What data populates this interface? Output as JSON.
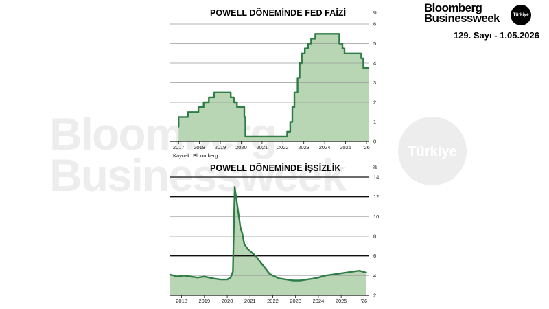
{
  "brand": {
    "name_line1": "Bloomberg",
    "name_line2": "Businessweek",
    "badge": "Türkiye",
    "issue": "129. Sayı - 1.05.2026"
  },
  "watermark": {
    "line1": "Bloomberg",
    "line2": "Businessweek",
    "badge": "Türkiye"
  },
  "colors": {
    "line": "#2e7d46",
    "fill": "#b9d6b4",
    "grid_thin": "#9a9a9a",
    "grid_thick": "#111111"
  },
  "chart_data": [
    {
      "type": "area",
      "title": "POWELL DÖNEMİNDE FED FAİZİ",
      "unit": "%",
      "source": "Kaynak: Bloomberg",
      "xlim": [
        2016.6,
        2026.1
      ],
      "ylim": [
        0,
        6
      ],
      "yticks": [
        0,
        1,
        2,
        3,
        4,
        5,
        6
      ],
      "xticks": [
        "2017",
        "2018",
        "2019",
        "2020",
        "2021",
        "2022",
        "2023",
        "2024",
        "2025",
        "'26"
      ],
      "x": [
        2017.0,
        2017.0,
        2017.2,
        2017.2,
        2017.45,
        2017.45,
        2017.95,
        2017.95,
        2018.2,
        2018.2,
        2018.45,
        2018.45,
        2018.7,
        2018.7,
        2018.95,
        2018.95,
        2019.5,
        2019.5,
        2019.65,
        2019.65,
        2019.8,
        2019.8,
        2020.15,
        2020.15,
        2020.2,
        2020.2,
        2022.2,
        2022.2,
        2022.35,
        2022.35,
        2022.45,
        2022.45,
        2022.55,
        2022.55,
        2022.7,
        2022.7,
        2022.8,
        2022.8,
        2022.9,
        2022.9,
        2023.05,
        2023.05,
        2023.2,
        2023.2,
        2023.35,
        2023.35,
        2023.55,
        2023.55,
        2024.7,
        2024.7,
        2024.85,
        2024.85,
        2024.95,
        2024.95,
        2025.75,
        2025.75,
        2025.85,
        2025.85,
        2026.1
      ],
      "values": [
        0.75,
        1.25,
        1.25,
        1.25,
        1.25,
        1.5,
        1.5,
        1.75,
        1.75,
        2.0,
        2.0,
        2.25,
        2.25,
        2.5,
        2.5,
        2.5,
        2.5,
        2.25,
        2.25,
        2.0,
        2.0,
        1.75,
        1.75,
        1.25,
        1.25,
        0.25,
        0.25,
        0.5,
        0.5,
        1.0,
        1.0,
        1.75,
        1.75,
        2.5,
        2.5,
        3.25,
        3.25,
        4.0,
        4.0,
        4.5,
        4.5,
        4.75,
        4.75,
        5.0,
        5.0,
        5.25,
        5.25,
        5.5,
        5.5,
        5.0,
        5.0,
        4.75,
        4.75,
        4.5,
        4.5,
        4.25,
        4.25,
        3.75,
        3.75
      ],
      "grid": "horizontal"
    },
    {
      "type": "area",
      "title": "POWELL DÖNEMİNDE İŞSİZLİK",
      "unit": "%",
      "xlim": [
        2017.5,
        2026.2
      ],
      "ylim": [
        2,
        14
      ],
      "yticks": [
        2,
        4,
        6,
        8,
        10,
        12,
        14
      ],
      "xticks": [
        "2018",
        "2019",
        "2020",
        "2021",
        "2022",
        "2023",
        "2024",
        "2025",
        "'26"
      ],
      "x": [
        2017.5,
        2017.8,
        2018.1,
        2018.4,
        2018.7,
        2019.0,
        2019.4,
        2019.7,
        2020.0,
        2020.15,
        2020.25,
        2020.33,
        2020.42,
        2020.5,
        2020.58,
        2020.67,
        2020.75,
        2020.9,
        2021.1,
        2021.25,
        2021.45,
        2021.65,
        2021.85,
        2022.0,
        2022.3,
        2022.6,
        2022.9,
        2023.2,
        2023.5,
        2023.8,
        2024.0,
        2024.3,
        2024.6,
        2024.9,
        2025.2,
        2025.5,
        2025.8,
        2026.1
      ],
      "values": [
        4.1,
        3.9,
        4.0,
        3.9,
        3.8,
        3.9,
        3.7,
        3.6,
        3.6,
        3.8,
        4.4,
        13.0,
        11.5,
        10.2,
        8.9,
        8.2,
        7.2,
        6.7,
        6.3,
        6.0,
        5.4,
        4.8,
        4.2,
        4.0,
        3.7,
        3.6,
        3.5,
        3.5,
        3.6,
        3.7,
        3.8,
        4.0,
        4.1,
        4.2,
        4.3,
        4.4,
        4.5,
        4.3
      ],
      "grid": "horizontal"
    }
  ]
}
